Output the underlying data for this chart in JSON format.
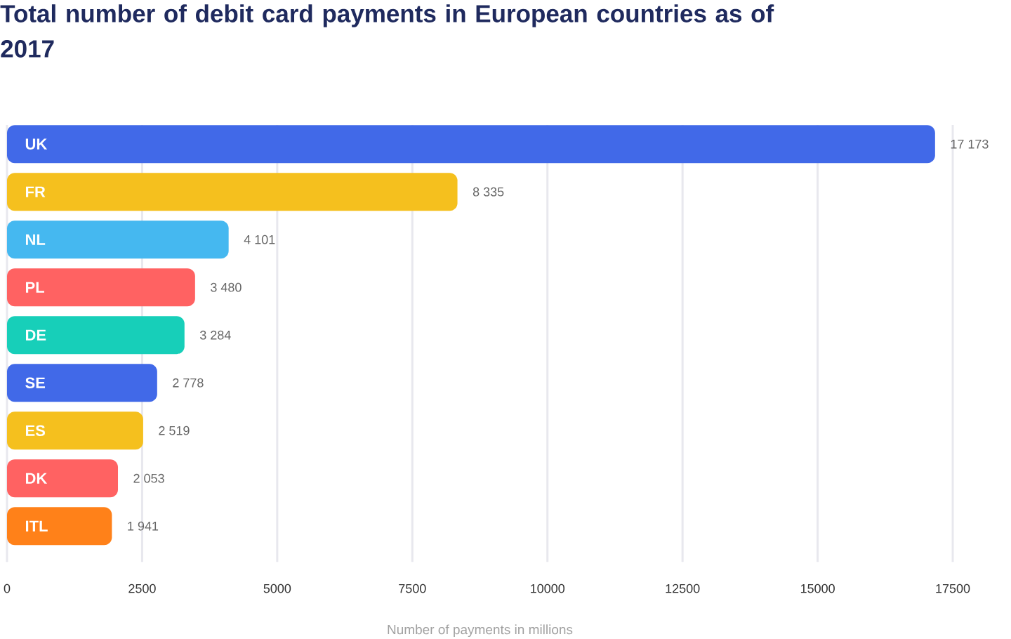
{
  "chart_data": {
    "type": "bar",
    "orientation": "horizontal",
    "title": "Total number of debit card payments in European countries as of 2017",
    "xlabel": "Number of payments in millions",
    "categories": [
      "UK",
      "FR",
      "NL",
      "PL",
      "DE",
      "SE",
      "ES",
      "DK",
      "ITL"
    ],
    "values": [
      17173,
      8335,
      4101,
      3480,
      3284,
      2778,
      2519,
      2053,
      1941
    ],
    "value_labels": [
      "17 173",
      "8 335",
      "4 101",
      "3 480",
      "3 284",
      "2 778",
      "2 519",
      "2 053",
      "1 941"
    ],
    "colors": [
      "#4169e8",
      "#f5c01e",
      "#45b8f0",
      "#ff6262",
      "#17cfb9",
      "#4169e8",
      "#f5c01e",
      "#ff6262",
      "#ff8119"
    ],
    "xlim": [
      0,
      17500
    ],
    "xticks": [
      0,
      2500,
      5000,
      7500,
      10000,
      12500,
      15000,
      17500
    ],
    "grid": "x"
  }
}
